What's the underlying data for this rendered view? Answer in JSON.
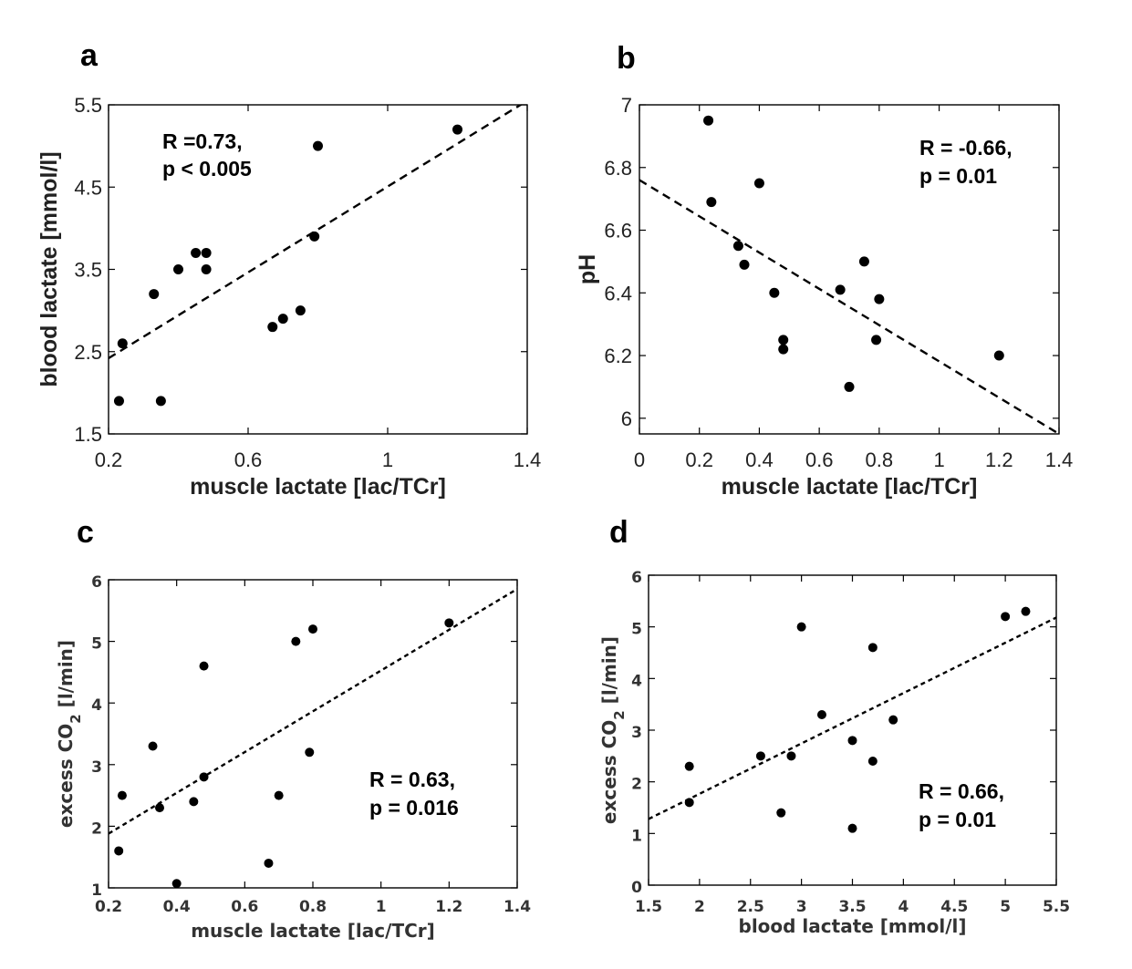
{
  "chart_data": [
    {
      "panel": "a",
      "type": "scatter",
      "xlabel": "muscle lactate [lac/TCr]",
      "ylabel": "blood lactate [mmol/l]",
      "xlim": [
        0.2,
        1.4
      ],
      "ylim": [
        1.5,
        5.5
      ],
      "xticks": [
        "0.2",
        "0.6",
        "1",
        "1.4"
      ],
      "yticks": [
        "1.5",
        "2.5",
        "3.5",
        "4.5",
        "5.5"
      ],
      "annotation": [
        "R =0.73,",
        "p < 0.005"
      ],
      "fit_line": {
        "x": [
          0.2,
          1.4
        ],
        "y": [
          2.42,
          5.55
        ]
      },
      "points": [
        {
          "x": 0.23,
          "y": 1.9
        },
        {
          "x": 0.24,
          "y": 2.6
        },
        {
          "x": 0.33,
          "y": 3.2
        },
        {
          "x": 0.35,
          "y": 1.9
        },
        {
          "x": 0.4,
          "y": 3.5
        },
        {
          "x": 0.45,
          "y": 3.7
        },
        {
          "x": 0.48,
          "y": 3.7
        },
        {
          "x": 0.48,
          "y": 3.5
        },
        {
          "x": 0.67,
          "y": 2.8
        },
        {
          "x": 0.7,
          "y": 2.9
        },
        {
          "x": 0.75,
          "y": 3.0
        },
        {
          "x": 0.79,
          "y": 3.9
        },
        {
          "x": 0.8,
          "y": 5.0
        },
        {
          "x": 1.2,
          "y": 5.2
        }
      ]
    },
    {
      "panel": "b",
      "type": "scatter",
      "xlabel": "muscle lactate [lac/TCr]",
      "ylabel": "pH",
      "xlim": [
        0,
        1.4
      ],
      "ylim": [
        5.95,
        7.0
      ],
      "xticks": [
        "0",
        "0.2",
        "0.4",
        "0.6",
        "0.8",
        "1",
        "1.2",
        "1.4"
      ],
      "yticks": [
        "6",
        "6.2",
        "6.4",
        "6.6",
        "6.8",
        "7"
      ],
      "annotation": [
        "R = -0.66,",
        "p = 0.01"
      ],
      "fit_line": {
        "x": [
          0,
          1.4
        ],
        "y": [
          6.76,
          5.95
        ]
      },
      "points": [
        {
          "x": 0.23,
          "y": 6.95
        },
        {
          "x": 0.24,
          "y": 6.69
        },
        {
          "x": 0.33,
          "y": 6.55
        },
        {
          "x": 0.35,
          "y": 6.49
        },
        {
          "x": 0.4,
          "y": 6.75
        },
        {
          "x": 0.45,
          "y": 6.4
        },
        {
          "x": 0.48,
          "y": 6.25
        },
        {
          "x": 0.48,
          "y": 6.22
        },
        {
          "x": 0.67,
          "y": 6.41
        },
        {
          "x": 0.7,
          "y": 6.1
        },
        {
          "x": 0.75,
          "y": 6.5
        },
        {
          "x": 0.79,
          "y": 6.25
        },
        {
          "x": 0.8,
          "y": 6.38
        },
        {
          "x": 1.2,
          "y": 6.2
        }
      ]
    },
    {
      "panel": "c",
      "type": "scatter",
      "xlabel": "muscle lactate [lac/TCr]",
      "ylabel": "excess CO",
      "ylabel_sub": "2",
      "ylabel_unit": " [l/min]",
      "xlim": [
        0.2,
        1.4
      ],
      "ylim": [
        1,
        6
      ],
      "xticks": [
        "0.2",
        "0.4",
        "0.6",
        "0.8",
        "1",
        "1.2",
        "1.4"
      ],
      "yticks": [
        "1",
        "2",
        "3",
        "4",
        "5",
        "6"
      ],
      "annotation": [
        "R = 0.63,",
        "p = 0.016"
      ],
      "fit_line": {
        "x": [
          0.2,
          1.4
        ],
        "y": [
          1.88,
          5.85
        ]
      },
      "points": [
        {
          "x": 0.23,
          "y": 1.6
        },
        {
          "x": 0.24,
          "y": 2.5
        },
        {
          "x": 0.33,
          "y": 3.3
        },
        {
          "x": 0.35,
          "y": 2.3
        },
        {
          "x": 0.4,
          "y": 1.07
        },
        {
          "x": 0.45,
          "y": 2.4
        },
        {
          "x": 0.48,
          "y": 2.8
        },
        {
          "x": 0.48,
          "y": 4.6
        },
        {
          "x": 0.67,
          "y": 1.4
        },
        {
          "x": 0.7,
          "y": 2.5
        },
        {
          "x": 0.75,
          "y": 5.0
        },
        {
          "x": 0.79,
          "y": 3.2
        },
        {
          "x": 0.8,
          "y": 5.2
        },
        {
          "x": 1.2,
          "y": 5.3
        }
      ]
    },
    {
      "panel": "d",
      "type": "scatter",
      "xlabel": "blood lactate [mmol/l]",
      "ylabel": "excess CO",
      "ylabel_sub": "2",
      "ylabel_unit": " [l/min]",
      "xlim": [
        1.5,
        5.5
      ],
      "ylim": [
        0,
        6
      ],
      "xticks": [
        "1.5",
        "2",
        "2.5",
        "3",
        "3.5",
        "4",
        "4.5",
        "5",
        "5.5"
      ],
      "yticks": [
        "0",
        "1",
        "2",
        "3",
        "4",
        "5",
        "6"
      ],
      "annotation": [
        "R = 0.66,",
        "p = 0.01"
      ],
      "fit_line": {
        "x": [
          1.5,
          5.5
        ],
        "y": [
          1.28,
          5.18
        ]
      },
      "points": [
        {
          "x": 1.9,
          "y": 2.3
        },
        {
          "x": 1.9,
          "y": 1.6
        },
        {
          "x": 2.6,
          "y": 2.5
        },
        {
          "x": 2.8,
          "y": 1.4
        },
        {
          "x": 2.9,
          "y": 2.5
        },
        {
          "x": 3.0,
          "y": 5.0
        },
        {
          "x": 3.2,
          "y": 3.3
        },
        {
          "x": 3.5,
          "y": 2.8
        },
        {
          "x": 3.5,
          "y": 1.1
        },
        {
          "x": 3.7,
          "y": 4.6
        },
        {
          "x": 3.7,
          "y": 2.4
        },
        {
          "x": 3.9,
          "y": 3.2
        },
        {
          "x": 5.0,
          "y": 5.2
        },
        {
          "x": 5.2,
          "y": 5.3
        }
      ]
    }
  ]
}
